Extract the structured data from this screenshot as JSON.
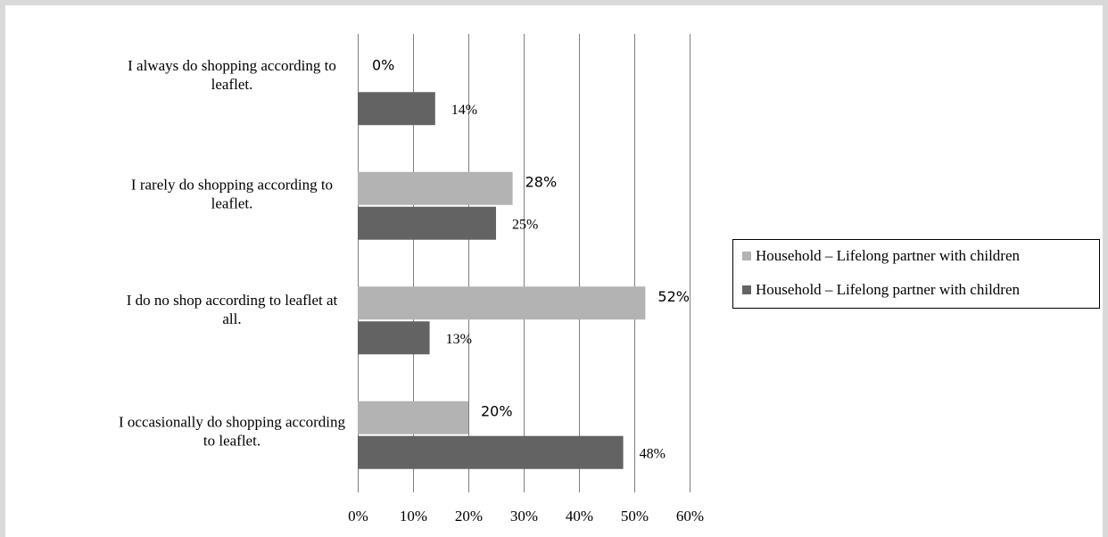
{
  "chart_data": {
    "type": "bar",
    "orientation": "horizontal",
    "categories": [
      "I always do shopping according to leaflet.",
      "I rarely do shopping according to leaflet.",
      "I do no shop according to leaflet at all.",
      "I occasionally do shopping according to leaflet."
    ],
    "series": [
      {
        "name": "Household – Lifelong partner with children",
        "color": "#b3b3b3",
        "values": [
          0,
          28,
          52,
          20
        ],
        "labels": [
          "0%",
          "28%",
          "52%",
          "20%"
        ]
      },
      {
        "name": "Household – Lifelong partner with children",
        "color": "#636363",
        "values": [
          14,
          25,
          13,
          48
        ],
        "labels": [
          "14%",
          "25%",
          "13%",
          "48%"
        ]
      }
    ],
    "xlim": [
      0,
      60
    ],
    "xticks": [
      "0%",
      "10%",
      "20%",
      "30%",
      "40%",
      "50%",
      "60%"
    ],
    "grid": true,
    "legend": "right"
  }
}
